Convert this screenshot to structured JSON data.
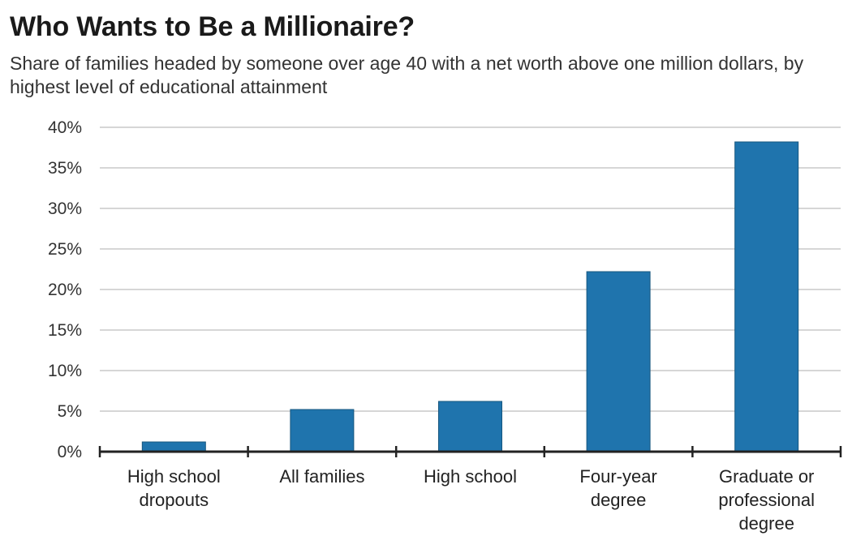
{
  "chart_data": {
    "type": "bar",
    "title": "Who Wants to Be a Millionaire?",
    "subtitle": "Share of families headed by someone over age 40 with a net worth above one million dollars, by highest level of educational attainment",
    "categories": [
      [
        "High school",
        "dropouts"
      ],
      [
        "All families"
      ],
      [
        "High school"
      ],
      [
        "Four-year",
        "degree"
      ],
      [
        "Graduate or",
        "professional",
        "degree"
      ]
    ],
    "values": [
      1.2,
      5.2,
      6.2,
      22.2,
      38.2
    ],
    "yticks": [
      0,
      5,
      10,
      15,
      20,
      25,
      30,
      35,
      40
    ],
    "ytick_labels": [
      "0%",
      "5%",
      "10%",
      "15%",
      "20%",
      "25%",
      "30%",
      "35%",
      "40%"
    ],
    "ylim": [
      0,
      40
    ],
    "grid": true,
    "colors": {
      "bar": "#1f74ad",
      "bar_edge": "#17577f",
      "grid": "#c8c8c8",
      "axis": "#222222"
    }
  }
}
